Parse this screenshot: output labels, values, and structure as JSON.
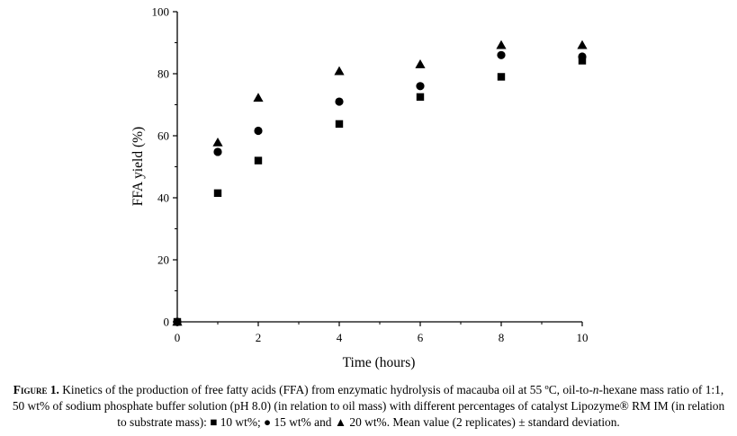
{
  "chart_data": {
    "type": "scatter",
    "xlabel": "Time (hours)",
    "ylabel": "FFA yield (%)",
    "xlim": [
      0,
      10
    ],
    "ylim": [
      0,
      100
    ],
    "xticks": [
      0,
      2,
      4,
      6,
      8,
      10
    ],
    "yticks": [
      0,
      20,
      40,
      60,
      80,
      100
    ],
    "grid": false,
    "legend": "none",
    "series": [
      {
        "marker": "square",
        "x": [
          0,
          1,
          2,
          4,
          6,
          8,
          10
        ],
        "y": [
          0,
          41.5,
          52,
          63.8,
          72.5,
          79,
          84.2
        ]
      },
      {
        "marker": "circle",
        "x": [
          0,
          1,
          2,
          4,
          6,
          8,
          10
        ],
        "y": [
          0,
          54.8,
          61.6,
          71,
          76,
          86,
          85.5
        ]
      },
      {
        "marker": "triangle",
        "x": [
          0,
          1,
          2,
          4,
          6,
          8,
          10
        ],
        "y": [
          0,
          57.8,
          72.2,
          80.8,
          83,
          89.2,
          89.2
        ]
      }
    ]
  },
  "caption": {
    "figure_label": "Figure 1.",
    "text_before_sub": " Kinetics of the production of free fatty acids (FFA) from enzymatic hydrolysis of macauba oil at 55 ºC, oil-to-",
    "sub_italic": "n",
    "text_after_sub": "-hexane mass ratio of 1:1, 50 wt% of sodium phosphate buffer solution (pH 8.0) (in relation to oil mass) with different percentages of catalyst Lipozyme® RM IM (in relation to substrate mass): ",
    "sym_square": "■",
    "label_square": " 10 wt%; ",
    "sym_circle": "●",
    "label_circle": " 15 wt% and ",
    "sym_triangle": "▲",
    "label_triangle": " 20 wt%. Mean value (2 replicates) ± standard deviation."
  }
}
